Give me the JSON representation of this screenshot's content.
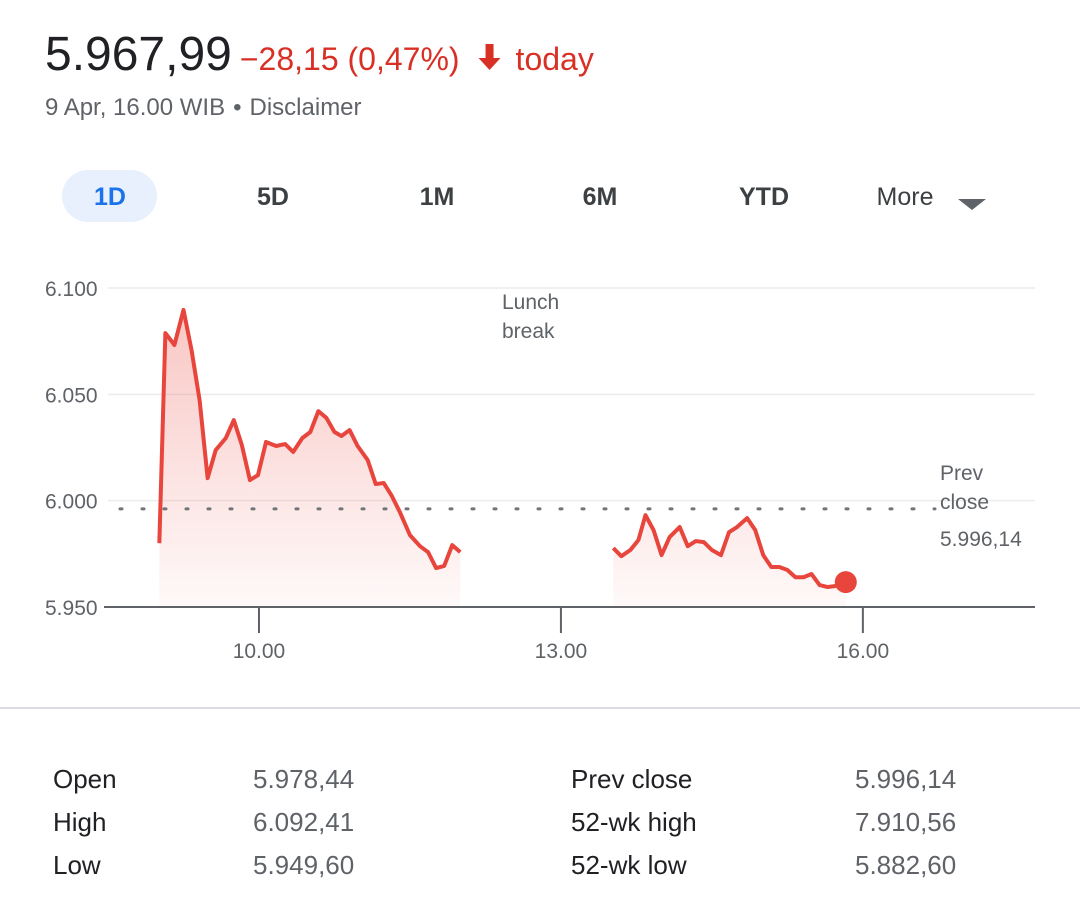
{
  "header": {
    "price": "5.967,99",
    "change": "−28,15 (0,47%)",
    "period": "today",
    "timestamp": "9 Apr, 16.00 WIB",
    "separator": "•",
    "disclaimer": "Disclaimer"
  },
  "tabs": [
    "1D",
    "5D",
    "1M",
    "6M",
    "YTD",
    "More"
  ],
  "chart_data": {
    "type": "line",
    "color": "#e8453c",
    "x": [
      9.01,
      9.07,
      9.16,
      9.25,
      9.33,
      9.41,
      9.49,
      9.57,
      9.67,
      9.75,
      9.83,
      9.91,
      9.99,
      10.07,
      10.17,
      10.26,
      10.34,
      10.43,
      10.51,
      10.59,
      10.67,
      10.75,
      10.82,
      10.9,
      10.98,
      11.08,
      11.16,
      11.24,
      11.32,
      11.4,
      11.5,
      11.6,
      11.68,
      11.76,
      11.84,
      11.92,
      12.0,
      12.75,
      13.52,
      13.6,
      13.69,
      13.77,
      13.84,
      13.92,
      14.0,
      14.08,
      14.18,
      14.26,
      14.34,
      14.42,
      14.5,
      14.59,
      14.67,
      14.75,
      14.85,
      14.93,
      15.01,
      15.09,
      15.17,
      15.25,
      15.33,
      15.41,
      15.49,
      15.57,
      15.65,
      15.72,
      15.83
    ],
    "values": [
      5980.0,
      6078.8,
      6073.2,
      6089.7,
      6070.8,
      6047.3,
      6010.6,
      6023.8,
      6029.4,
      6037.9,
      6026.1,
      6009.7,
      6012.0,
      6027.6,
      6025.7,
      6026.6,
      6022.9,
      6029.4,
      6032.3,
      6042.1,
      6038.9,
      6032.3,
      6030.4,
      6033.2,
      6025.7,
      6019.1,
      6007.8,
      6008.3,
      6002.2,
      5994.6,
      5983.8,
      5978.6,
      5975.8,
      5968.3,
      5969.3,
      5979.1,
      5975.8,
      null,
      5977.7,
      5973.9,
      5976.8,
      5981.5,
      5993.2,
      5986.2,
      5974.4,
      5982.9,
      5987.6,
      5978.6,
      5981.0,
      5980.5,
      5976.8,
      5974.4,
      5985.2,
      5987.6,
      5991.8,
      5986.2,
      5974.4,
      5968.8,
      5968.8,
      5967.4,
      5964.0,
      5964.0,
      5965.5,
      5960.3,
      5959.4,
      5959.8,
      5961.7
    ],
    "xlim": [
      8.5,
      17.71
    ],
    "xticks": [
      {
        "value": 10,
        "label": "10.00"
      },
      {
        "value": 13,
        "label": "13.00"
      },
      {
        "value": 16,
        "label": "16.00"
      }
    ],
    "ylim": [
      5950,
      6100
    ],
    "yticks": [
      {
        "value": 5950,
        "label": "5.950"
      },
      {
        "value": 6000,
        "label": "6.000"
      },
      {
        "value": 6050,
        "label": "6.050"
      },
      {
        "value": 6100,
        "label": "6.100"
      }
    ],
    "grid": true,
    "annotation": "Lunch break",
    "prev_close": {
      "label": "Prev close",
      "value": 5996.14,
      "value_label": "5.996,14"
    }
  },
  "stats": [
    {
      "label": "Open",
      "value": "5.978,44"
    },
    {
      "label": "High",
      "value": "6.092,41"
    },
    {
      "label": "Low",
      "value": "5.949,60"
    },
    {
      "label": "Prev close",
      "value": "5.996,14"
    },
    {
      "label": "52-wk high",
      "value": "7.910,56"
    },
    {
      "label": "52-wk low",
      "value": "5.882,60"
    }
  ]
}
